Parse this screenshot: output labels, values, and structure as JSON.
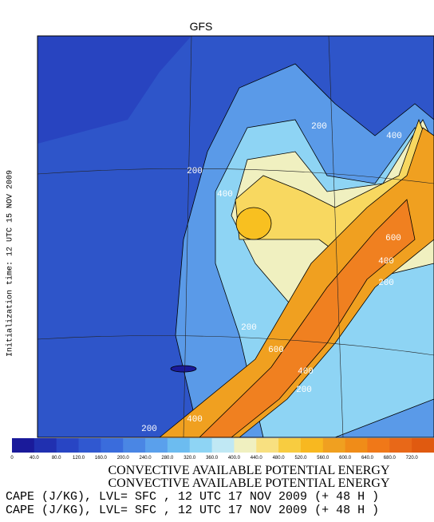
{
  "title": "GFS",
  "side_label": "Initialization time: 12 UTC 15 NOV 2009",
  "colorbar": {
    "labels": [
      "0",
      "40.0",
      "80.0",
      "120.0",
      "160.0",
      "200.0",
      "240.0",
      "280.0",
      "320.0",
      "360.0",
      "400.0",
      "440.0",
      "480.0",
      "520.0",
      "560.0",
      "600.0",
      "640.0",
      "680.0",
      "720.0"
    ],
    "colors": [
      "#1a1a9a",
      "#2030b0",
      "#2845c4",
      "#3058d0",
      "#3a6cdc",
      "#4a86e4",
      "#5aa0ec",
      "#6cbcf0",
      "#8ed4f4",
      "#c0e8f4",
      "#f0f0c0",
      "#f8e080",
      "#f8cc40",
      "#f8b820",
      "#f0a020",
      "#f08c18",
      "#f07818",
      "#e86818",
      "#e05a10"
    ]
  },
  "contour_labels": [
    "200",
    "400",
    "200",
    "400",
    "600",
    "400",
    "200",
    "200",
    "600",
    "400",
    "200",
    "200",
    "400"
  ],
  "caption": [
    "CONVECTIVE AVAILABLE POTENTIAL ENERGY",
    "CONVECTIVE AVAILABLE POTENTIAL ENERGY",
    "CAPE (J/KG),  LVL= SFC , 12 UTC 17 NOV 2009 (+ 48 H )",
    "CAPE (J/KG),  LVL= SFC , 12 UTC 17 NOV 2009 (+ 48 H )"
  ]
}
